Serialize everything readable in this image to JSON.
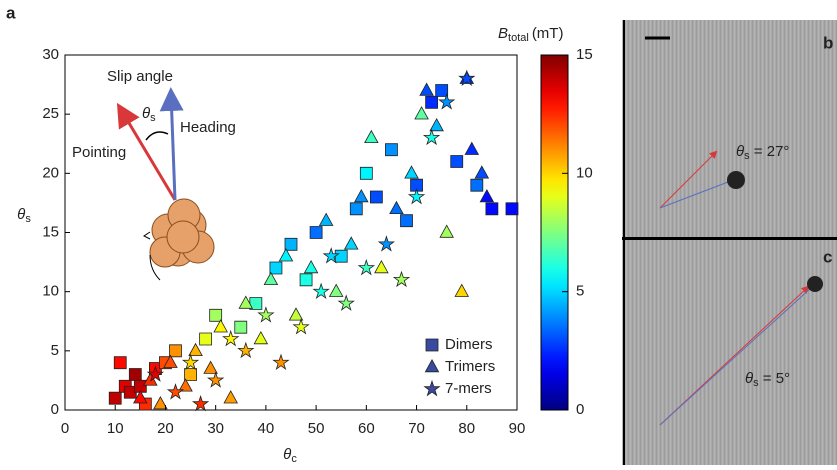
{
  "chart_data": {
    "type": "scatter",
    "panel_label": "a",
    "xlabel": {
      "symbol": "θ",
      "subscript": "c"
    },
    "ylabel": {
      "symbol": "θ",
      "subscript": "s"
    },
    "xlim": [
      0,
      90
    ],
    "ylim": [
      0,
      30
    ],
    "xticks": [
      0,
      10,
      20,
      30,
      40,
      50,
      60,
      70,
      80,
      90
    ],
    "yticks": [
      0,
      5,
      10,
      15,
      20,
      25,
      30
    ],
    "colorbar": {
      "label": {
        "symbol": "B",
        "subscript": "total",
        "unit": "(mT)"
      },
      "lim": [
        0,
        15
      ],
      "ticks": [
        0,
        5,
        10,
        15
      ],
      "colormap": "jet"
    },
    "annotations": {
      "slip_angle": "Slip angle",
      "heading": "Heading",
      "pointing": "Pointing",
      "theta_s": {
        "symbol": "θ",
        "subscript": "s"
      }
    },
    "series": [
      {
        "name": "Dimers",
        "marker": "square",
        "x": [
          10,
          12,
          14,
          11,
          13,
          16,
          18,
          15,
          20,
          22,
          25,
          28,
          30,
          35,
          38,
          42,
          45,
          48,
          50,
          55,
          58,
          60,
          62,
          65,
          68,
          70,
          73,
          75,
          78,
          82,
          85,
          89
        ],
        "values": [
          1,
          2,
          3,
          4,
          1.5,
          0.5,
          3.5,
          2,
          4,
          5,
          3,
          6,
          8,
          7,
          9,
          12,
          14,
          11,
          15,
          13,
          17,
          20,
          18,
          22,
          16,
          19,
          26,
          27,
          21,
          19,
          17,
          17
        ],
        "color_values": [
          14,
          13.5,
          14.5,
          13,
          14,
          12.5,
          13,
          14,
          12,
          11,
          10.5,
          9,
          8,
          7.5,
          6.5,
          5,
          4.5,
          6,
          3.5,
          5,
          4,
          5.5,
          3,
          4,
          3.5,
          3,
          2.5,
          3,
          3,
          3.5,
          2,
          2
        ]
      },
      {
        "name": "Trimers",
        "marker": "triangle",
        "x": [
          15,
          17,
          19,
          21,
          24,
          26,
          29,
          31,
          33,
          36,
          39,
          41,
          44,
          46,
          49,
          52,
          54,
          57,
          59,
          61,
          63,
          66,
          69,
          71,
          72,
          74,
          76,
          79,
          81,
          83,
          84,
          80
        ],
        "values": [
          1,
          2.5,
          0.5,
          4,
          2,
          5,
          3.5,
          7,
          1,
          9,
          6,
          11,
          13,
          8,
          12,
          16,
          10,
          14,
          18,
          23,
          12,
          17,
          20,
          25,
          27,
          24,
          15,
          10,
          22,
          20,
          18,
          28
        ],
        "color_values": [
          13,
          12.5,
          11,
          12,
          11.5,
          10.5,
          11,
          9.5,
          10.8,
          8,
          9,
          7,
          5.5,
          8.5,
          6,
          4.5,
          7.5,
          5,
          4,
          6.5,
          9,
          3.5,
          5,
          7,
          3,
          4.5,
          8,
          10,
          2.5,
          3,
          2,
          2.5
        ]
      },
      {
        "name": "7-mers",
        "marker": "star",
        "x": [
          18,
          22,
          25,
          27,
          30,
          33,
          36,
          40,
          43,
          47,
          51,
          53,
          56,
          60,
          64,
          67,
          70,
          73,
          76,
          80
        ],
        "values": [
          3,
          1.5,
          4,
          0.5,
          2.5,
          6,
          5,
          8,
          4,
          7,
          10,
          13,
          9,
          12,
          14,
          11,
          18,
          23,
          26,
          28
        ],
        "color_values": [
          13.5,
          12,
          10,
          12.5,
          11,
          9.5,
          10.5,
          8,
          11,
          9,
          6,
          5,
          7.5,
          6.5,
          4,
          8,
          5.5,
          6,
          4,
          3
        ]
      }
    ]
  },
  "side_panels": [
    {
      "label": "b",
      "annotation": {
        "symbol": "θ",
        "subscript": "s",
        "text": " = 27°"
      }
    },
    {
      "label": "c",
      "annotation": {
        "symbol": "θ",
        "subscript": "s",
        "text": " = 5°"
      }
    }
  ]
}
